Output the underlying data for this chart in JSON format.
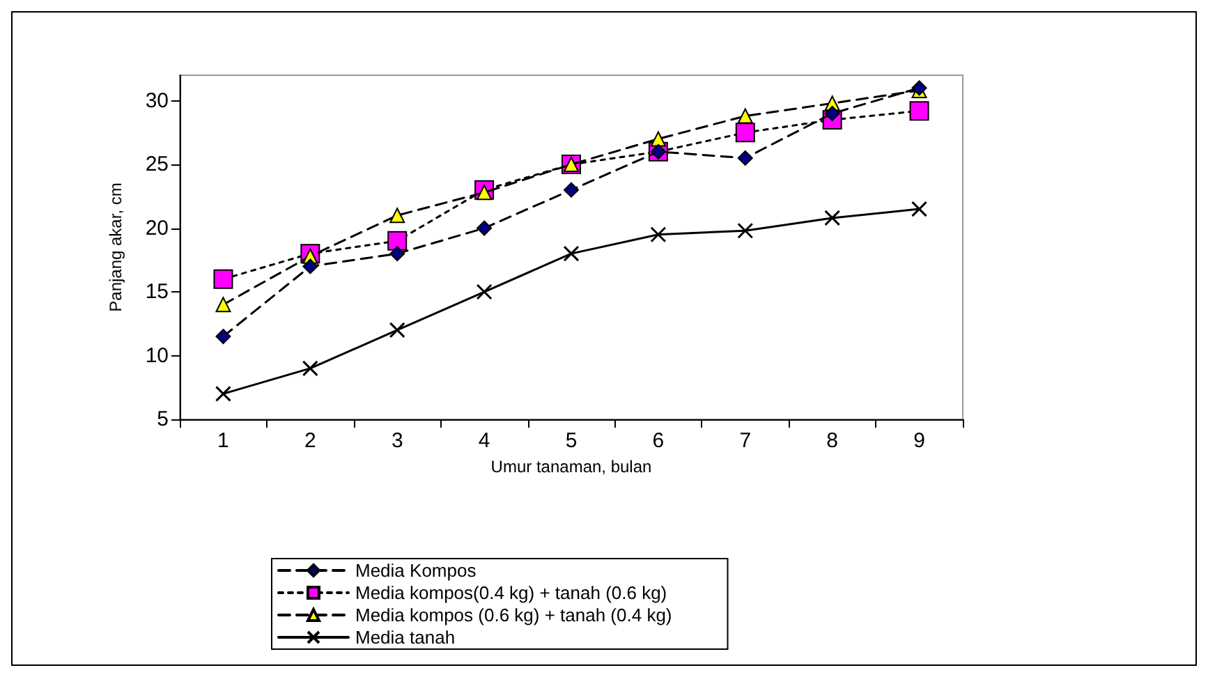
{
  "chart_data": {
    "type": "line",
    "xlabel": "Umur tanaman, bulan",
    "ylabel": "Panjang akar, cm",
    "categories": [
      "1",
      "2",
      "3",
      "4",
      "5",
      "6",
      "7",
      "8",
      "9"
    ],
    "series": [
      {
        "name": "Media Kompos",
        "color": "#000080",
        "marker": "diamond",
        "line_style": "dashed",
        "values": [
          11.5,
          17,
          18,
          20,
          23,
          26,
          25.5,
          29,
          31
        ]
      },
      {
        "name": "Media kompos(0.4 kg) + tanah (0.6 kg)",
        "color": "#ff00ff",
        "marker": "square",
        "line_style": "dotted",
        "values": [
          16,
          18,
          19,
          23,
          25,
          26,
          27.5,
          28.5,
          29.2
        ]
      },
      {
        "name": "Media kompos (0.6 kg) + tanah (0.4 kg)",
        "color": "#ffff00",
        "marker": "triangle",
        "line_style": "dashed",
        "values": [
          14,
          17.8,
          21,
          22.8,
          25,
          27,
          28.8,
          29.8,
          30.8
        ]
      },
      {
        "name": "Media tanah",
        "color": "#000000",
        "marker": "cross",
        "line_style": "solid",
        "values": [
          7,
          9,
          12,
          15,
          18,
          19.5,
          19.8,
          20.8,
          21.5
        ]
      }
    ],
    "ylim": [
      5,
      32
    ],
    "yticks": [
      5,
      10,
      15,
      20,
      25,
      30
    ],
    "grid": false,
    "legend": "bottom"
  }
}
